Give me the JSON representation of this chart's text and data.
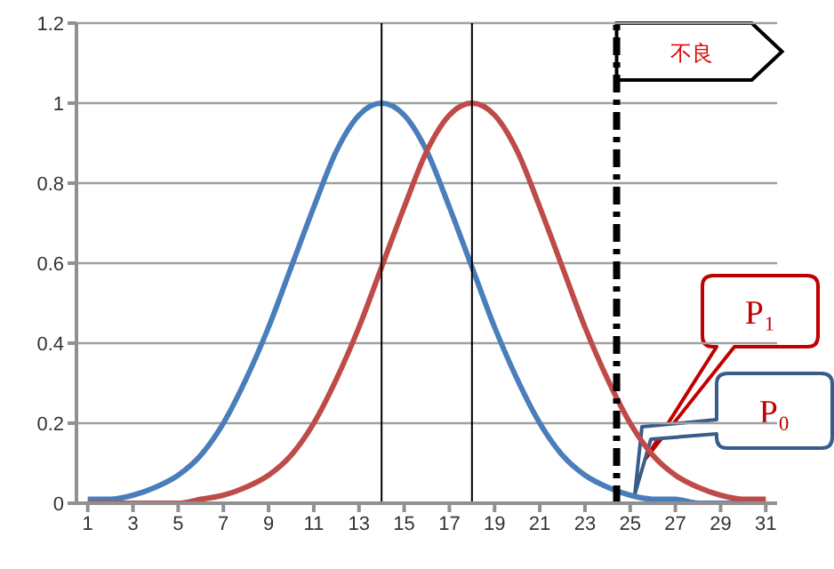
{
  "chart_data": {
    "type": "line",
    "x": [
      1,
      2,
      3,
      4,
      5,
      6,
      7,
      8,
      9,
      10,
      11,
      12,
      13,
      14,
      15,
      16,
      17,
      18,
      19,
      20,
      21,
      22,
      23,
      24,
      25,
      26,
      27,
      28,
      29,
      30,
      31
    ],
    "series": [
      {
        "color": "#4a7ebb",
        "values": [
          0.01,
          0.01,
          0.02,
          0.04,
          0.07,
          0.12,
          0.2,
          0.31,
          0.44,
          0.59,
          0.74,
          0.88,
          0.97,
          1,
          0.97,
          0.88,
          0.74,
          0.59,
          0.44,
          0.31,
          0.2,
          0.12,
          0.07,
          0.04,
          0.02,
          0.01,
          0.01,
          0,
          0,
          0,
          0
        ]
      },
      {
        "color": "#be4b48",
        "values": [
          0,
          0,
          0,
          0,
          0,
          0.01,
          0.02,
          0.04,
          0.07,
          0.12,
          0.2,
          0.31,
          0.44,
          0.59,
          0.74,
          0.88,
          0.97,
          1,
          0.97,
          0.88,
          0.74,
          0.59,
          0.44,
          0.31,
          0.2,
          0.12,
          0.07,
          0.04,
          0.02,
          0.01,
          0.01
        ]
      }
    ],
    "xlim": [
      0.5,
      31.5
    ],
    "xticks": [
      1,
      3,
      5,
      7,
      9,
      11,
      13,
      15,
      17,
      19,
      21,
      23,
      25,
      27,
      29,
      31
    ],
    "ylim": [
      0,
      1.2
    ],
    "yticks": [
      0,
      0.2,
      0.4,
      0.6,
      0.8,
      1,
      1.2
    ],
    "grid": "y",
    "marker": "none",
    "line_style": "solid",
    "ref_lines": [
      {
        "axis": "x",
        "value": 14,
        "color": "#000000",
        "line_style": "solid"
      },
      {
        "axis": "x",
        "value": 18,
        "color": "#000000",
        "line_style": "solid"
      },
      {
        "axis": "x",
        "value": 24.4,
        "color": "#000000",
        "line_style": "dashed",
        "label": "不良"
      }
    ],
    "annotations": [
      "P₁",
      "P₀"
    ]
  }
}
